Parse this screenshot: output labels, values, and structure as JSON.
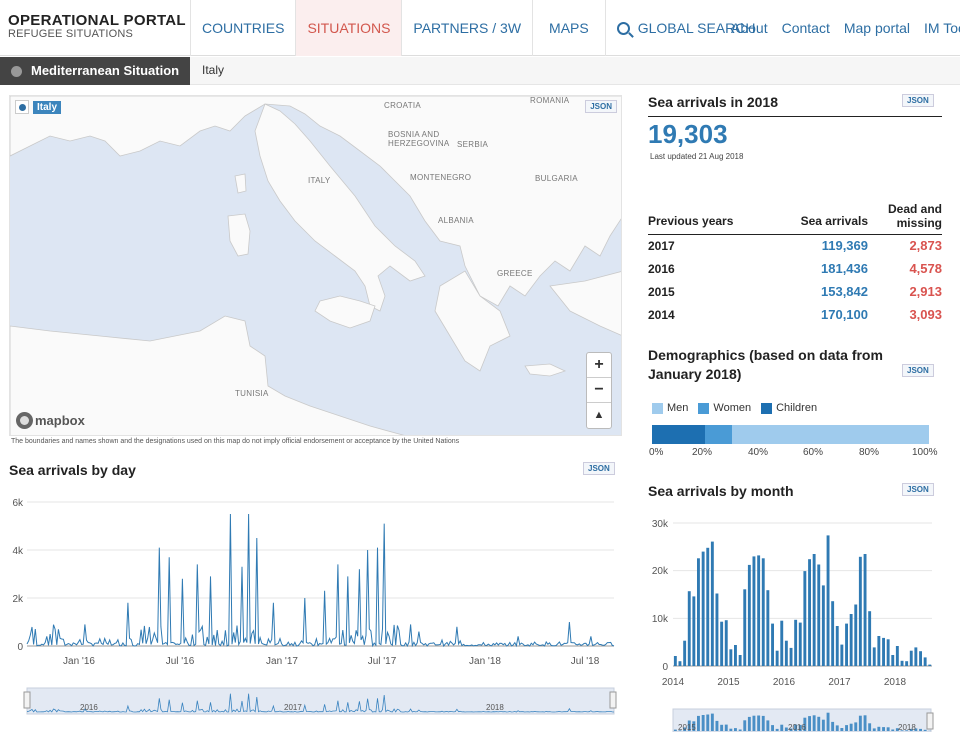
{
  "header": {
    "brand_title": "OPERATIONAL PORTAL",
    "brand_subtitle": "REFUGEE SITUATIONS",
    "nav": [
      "COUNTRIES",
      "SITUATIONS",
      "PARTNERS / 3W",
      "MAPS",
      "GLOBAL SEARCH"
    ],
    "links": [
      "About",
      "Contact",
      "Map portal",
      "IM Tool"
    ]
  },
  "breadcrumb": {
    "situation": "Mediterranean Situation",
    "country": "Italy"
  },
  "map": {
    "badge": "Italy",
    "json_label": "JSON",
    "labels": [
      "CROATIA",
      "BOSNIA AND HERZEGOVINA",
      "SERBIA",
      "ROMANIA",
      "ITALY",
      "MONTENEGRO",
      "BULGARIA",
      "ALBANIA",
      "GREECE",
      "TUNISIA"
    ],
    "zoom_in": "+",
    "zoom_out": "−",
    "reset": "▲",
    "attribution": "mapbox",
    "disclaimer": "The boundaries and names shown and the designations used on this map do not imply official endorsement or acceptance by the United Nations"
  },
  "sea_arrivals_2018": {
    "title": "Sea arrivals in 2018",
    "value": "19,303",
    "updated": "Last updated 21 Aug 2018",
    "json_label": "JSON"
  },
  "previous_years": {
    "headers": [
      "Previous years",
      "Sea arrivals",
      "Dead and missing"
    ],
    "rows": [
      {
        "year": "2017",
        "arrivals": "119,369",
        "dead": "2,873"
      },
      {
        "year": "2016",
        "arrivals": "181,436",
        "dead": "4,578"
      },
      {
        "year": "2015",
        "arrivals": "153,842",
        "dead": "2,913"
      },
      {
        "year": "2014",
        "arrivals": "170,100",
        "dead": "3,093"
      }
    ]
  },
  "demographics": {
    "title": "Demographics (based on data from January 2018)",
    "json_label": "JSON",
    "legend": [
      {
        "name": "Men",
        "color": "#9fcbed"
      },
      {
        "name": "Women",
        "color": "#4a9bd6"
      },
      {
        "name": "Children",
        "color": "#1d6fb1"
      }
    ],
    "ticks": [
      "0%",
      "20%",
      "40%",
      "60%",
      "80%",
      "100%"
    ],
    "shares": {
      "children": 0.19,
      "women": 0.1,
      "men": 0.71
    }
  },
  "by_day": {
    "title": "Sea arrivals by day",
    "json_label": "JSON",
    "y_ticks": [
      "6k",
      "4k",
      "2k",
      "0"
    ],
    "x_ticks": [
      "Jan '16",
      "Jul '16",
      "Jan '17",
      "Jul '17",
      "Jan '18",
      "Jul '18"
    ],
    "navigator_labels": [
      "2016",
      "2017",
      "2018"
    ]
  },
  "by_month": {
    "title": "Sea arrivals by month",
    "json_label": "JSON",
    "y_ticks": [
      "30k",
      "20k",
      "10k",
      "0"
    ],
    "x_ticks": [
      "2014",
      "2015",
      "2016",
      "2017",
      "2018"
    ],
    "navigator_labels": [
      "2015",
      "2016",
      "2018"
    ]
  },
  "chart_data": [
    {
      "type": "line",
      "title": "Sea arrivals by day",
      "ylim": [
        0,
        6000
      ],
      "xlim": [
        "2015-10-01",
        "2018-08-31"
      ],
      "grid": true,
      "peaks": [
        {
          "x": "2015-11-20",
          "y": 700
        },
        {
          "x": "2016-01-15",
          "y": 900
        },
        {
          "x": "2016-04-01",
          "y": 1800
        },
        {
          "x": "2016-05-28",
          "y": 4100
        },
        {
          "x": "2016-06-15",
          "y": 3700
        },
        {
          "x": "2016-07-10",
          "y": 2800
        },
        {
          "x": "2016-08-05",
          "y": 3400
        },
        {
          "x": "2016-08-30",
          "y": 2900
        },
        {
          "x": "2016-10-04",
          "y": 5500
        },
        {
          "x": "2016-10-25",
          "y": 3300
        },
        {
          "x": "2016-11-05",
          "y": 5500
        },
        {
          "x": "2016-11-20",
          "y": 4500
        },
        {
          "x": "2016-12-20",
          "y": 1800
        },
        {
          "x": "2017-02-15",
          "y": 2000
        },
        {
          "x": "2017-03-25",
          "y": 2300
        },
        {
          "x": "2017-04-16",
          "y": 3400
        },
        {
          "x": "2017-05-05",
          "y": 2900
        },
        {
          "x": "2017-05-27",
          "y": 3200
        },
        {
          "x": "2017-06-10",
          "y": 4000
        },
        {
          "x": "2017-06-27",
          "y": 4100
        },
        {
          "x": "2017-07-09",
          "y": 5100
        },
        {
          "x": "2017-09-10",
          "y": 600
        },
        {
          "x": "2017-11-20",
          "y": 800
        },
        {
          "x": "2018-03-10",
          "y": 400
        },
        {
          "x": "2018-06-10",
          "y": 1000
        },
        {
          "x": "2018-07-20",
          "y": 400
        }
      ]
    },
    {
      "type": "bar",
      "title": "Sea arrivals by month",
      "ylim": [
        0,
        30000
      ],
      "x": [
        "2014-01",
        "2014-02",
        "2014-03",
        "2014-04",
        "2014-05",
        "2014-06",
        "2014-07",
        "2014-08",
        "2014-09",
        "2014-10",
        "2014-11",
        "2014-12",
        "2015-01",
        "2015-02",
        "2015-03",
        "2015-04",
        "2015-05",
        "2015-06",
        "2015-07",
        "2015-08",
        "2015-09",
        "2015-10",
        "2015-11",
        "2015-12",
        "2016-01",
        "2016-02",
        "2016-03",
        "2016-04",
        "2016-05",
        "2016-06",
        "2016-07",
        "2016-08",
        "2016-09",
        "2016-10",
        "2016-11",
        "2016-12",
        "2017-01",
        "2017-02",
        "2017-03",
        "2017-04",
        "2017-05",
        "2017-06",
        "2017-07",
        "2017-08",
        "2017-09",
        "2017-10",
        "2017-11",
        "2017-12",
        "2018-01",
        "2018-02",
        "2018-03",
        "2018-04",
        "2018-05",
        "2018-06",
        "2018-07",
        "2018-08"
      ],
      "values": [
        2100,
        1000,
        5300,
        15700,
        14600,
        22600,
        24000,
        24800,
        26100,
        15200,
        9300,
        9600,
        3500,
        4400,
        2300,
        16100,
        21200,
        23000,
        23200,
        22600,
        15900,
        8900,
        3200,
        9500,
        5300,
        3800,
        9700,
        9100,
        19900,
        22400,
        23500,
        21300,
        16900,
        27400,
        13600,
        8400,
        4500,
        8900,
        10900,
        12900,
        22900,
        23500,
        11500,
        3900,
        6300,
        5900,
        5600,
        2300,
        4200,
        1100,
        1000,
        3200,
        3900,
        3100,
        1800,
        300
      ]
    }
  ]
}
